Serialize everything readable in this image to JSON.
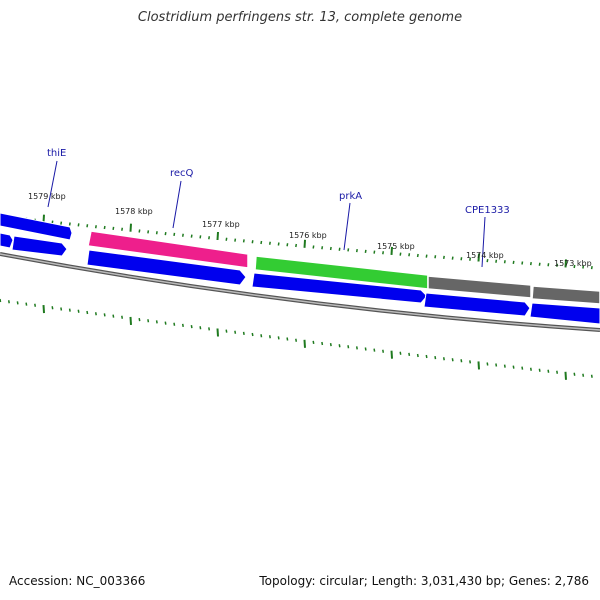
{
  "title": "Clostridium perfringens str. 13, complete genome",
  "footer": {
    "accession": "Accession: NC_003366",
    "summary": "Topology: circular; Length: 3,031,430 bp; Genes: 2,786"
  },
  "colors": {
    "forward_gene": "#0000ee",
    "recq": "#ee1f8c",
    "prka": "#33cc33",
    "cpe1333": "#666666",
    "backbone": "#888888",
    "ticks": "#1f7a1f",
    "label": "#1a1aa6"
  },
  "kbp_labels": [
    "1579 kbp",
    "1578 kbp",
    "1577 kbp",
    "1576 kbp",
    "1575 kbp",
    "1574 kbp",
    "1573 kbp"
  ],
  "gene_labels": [
    "thiE",
    "recQ",
    "prkA",
    "CPE1333"
  ]
}
